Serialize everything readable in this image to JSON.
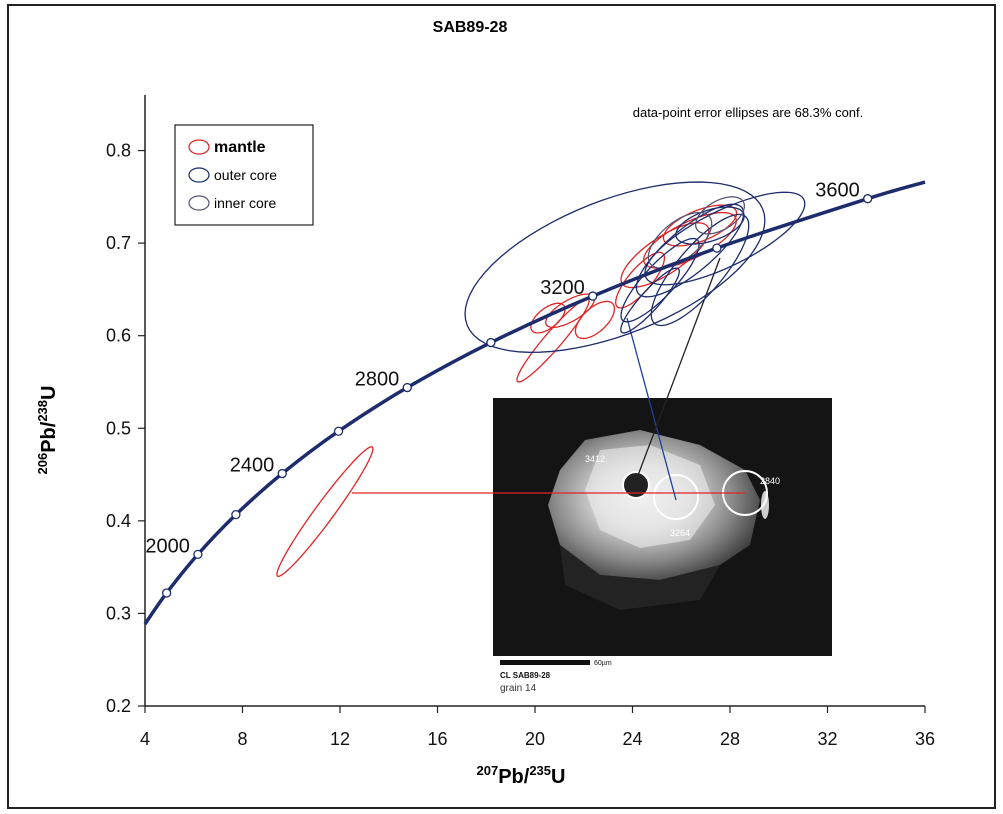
{
  "chart_data": {
    "type": "concordia",
    "title": "SAB89-28",
    "note": "data-point error ellipses are 68.3% conf.",
    "xlabel": {
      "sup1": "207",
      "base1": "Pb/",
      "sup2": "235",
      "base2": "U"
    },
    "ylabel": {
      "sup1": "206",
      "base1": "Pb/",
      "sup2": "238",
      "base2": "U"
    },
    "xlim": [
      4,
      36
    ],
    "xticks": [
      4,
      8,
      12,
      16,
      20,
      24,
      28,
      32,
      36
    ],
    "ylim": [
      0.2,
      0.86
    ],
    "yticks": [
      0.2,
      0.3,
      0.4,
      0.5,
      0.6,
      0.7,
      0.8
    ],
    "concordia": {
      "color": "#1c2c6c",
      "curve_x": [
        4,
        4.887,
        6.17,
        7.729,
        9.63,
        11.94,
        14.76,
        18.19,
        22.37,
        27.46,
        33.65,
        36
      ],
      "curve_y": [
        0.2885,
        0.3221,
        0.3638,
        0.4067,
        0.4511,
        0.4968,
        0.544,
        0.5926,
        0.6428,
        0.6946,
        0.748,
        0.766
      ],
      "x": [
        4.887,
        6.17,
        7.729,
        9.63,
        11.94,
        14.76,
        18.19,
        22.37,
        27.46,
        33.65
      ],
      "y": [
        0.3221,
        0.3638,
        0.4067,
        0.4511,
        0.4968,
        0.544,
        0.5926,
        0.6428,
        0.6946,
        0.748
      ],
      "labels": [
        null,
        2000,
        null,
        2400,
        null,
        2800,
        null,
        3200,
        null,
        3600
      ]
    },
    "series": [
      {
        "name": "mantle",
        "color": "#e02424",
        "x": [
          11.38,
          20.74,
          21.44,
          22.46,
          20.53,
          26.36,
          25.33,
          26.77,
          24.31
        ],
        "y": [
          0.41,
          0.595,
          0.627,
          0.617,
          0.619,
          0.703,
          0.687,
          0.719,
          0.66
        ],
        "dx": [
          1.97,
          1.48,
          1.0,
          0.8,
          0.7,
          1.9,
          1.8,
          1.5,
          1.0
        ],
        "dy": [
          0.07,
          0.045,
          0.018,
          0.02,
          0.016,
          0.03,
          0.035,
          0.022,
          0.03
        ],
        "rho": [
          0.97,
          0.95,
          0.7,
          0.6,
          0.6,
          0.7,
          0.75,
          0.6,
          0.8
        ]
      },
      {
        "name": "outer core",
        "color": "#1c2c6c",
        "x": [
          23.28,
          27.79,
          26.36,
          25.13,
          27.18,
          24.72,
          26.77
        ],
        "y": [
          0.674,
          0.705,
          0.692,
          0.66,
          0.719,
          0.638,
          0.671
        ],
        "dx": [
          6.15,
          3.28,
          2.2,
          1.6,
          1.4,
          1.2,
          2.0
        ],
        "dy": [
          0.092,
          0.05,
          0.05,
          0.045,
          0.02,
          0.035,
          0.06
        ],
        "rho": [
          0.55,
          0.75,
          0.8,
          0.85,
          0.5,
          0.9,
          0.8
        ]
      },
      {
        "name": "inner core",
        "color": "#555577",
        "x": [
          25.95,
          27.59
        ],
        "y": [
          0.703,
          0.73
        ],
        "dx": [
          1.3,
          1.0
        ],
        "dy": [
          0.03,
          0.02
        ],
        "rho": [
          0.6,
          0.5
        ]
      }
    ],
    "inset": {
      "spot1": "3412",
      "spot2": "3264",
      "spot3": "2840",
      "scale": "60µm",
      "caption": "CL SAB89-28",
      "grain": "grain 14"
    }
  }
}
